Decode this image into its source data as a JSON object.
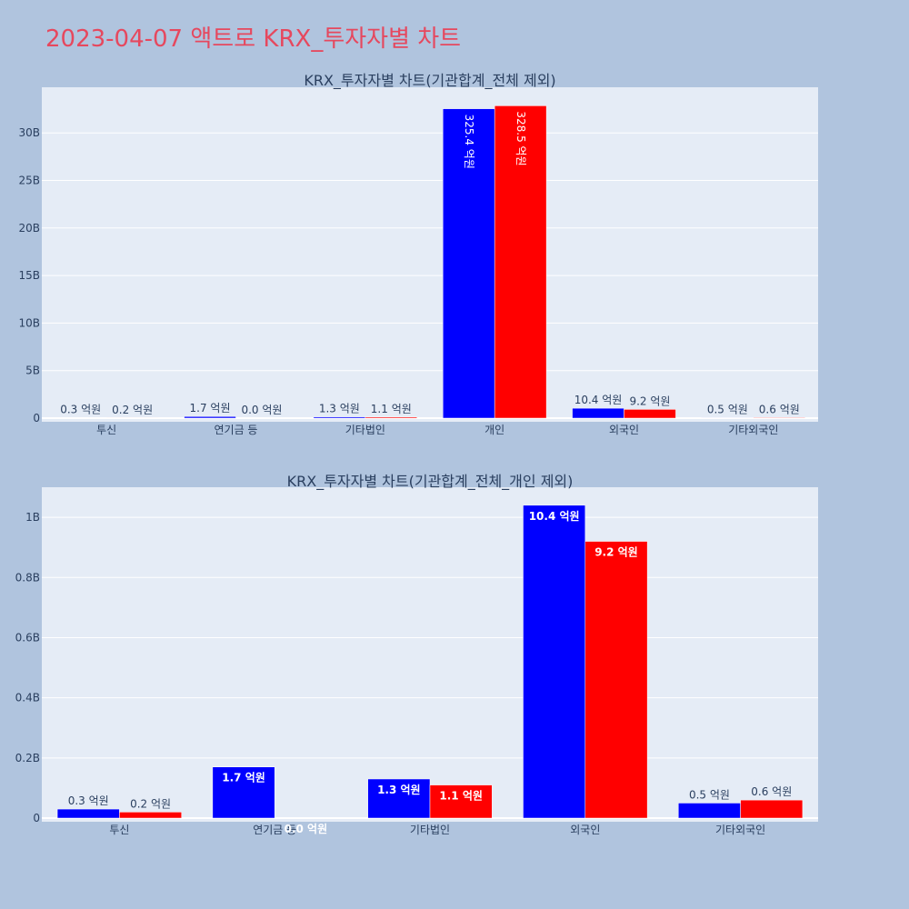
{
  "page": {
    "title": "2023-04-07 액트로 KRX_투자자별 차트"
  },
  "colors": {
    "background": "#b0c4de",
    "plot_bg": "#e5ecf6",
    "series_a": "#0000ff",
    "series_b": "#ff0000",
    "title": "#e6485e",
    "text": "#2a3f5f"
  },
  "chart_data": [
    {
      "type": "bar",
      "title": "KRX_투자자별 차트(기관합계_전체 제외)",
      "categories": [
        "투신",
        "연기금 등",
        "기타법인",
        "개인",
        "외국인",
        "기타외국인"
      ],
      "series": [
        {
          "values": [
            30000000,
            170000000,
            130000000,
            32540000000,
            1040000000,
            50000000
          ],
          "labels": [
            "0.3 억원",
            "1.7 억원",
            "1.3 억원",
            "325.4 억원",
            "10.4 억원",
            "0.5 억원"
          ]
        },
        {
          "values": [
            20000000,
            0,
            110000000,
            32850000000,
            920000000,
            60000000
          ],
          "labels": [
            "0.2 억원",
            "0.0 억원",
            "1.1 억원",
            "328.5 억원",
            "9.2 억원",
            "0.6 억원"
          ]
        }
      ],
      "yticks": [
        0,
        5000000000,
        10000000000,
        15000000000,
        20000000000,
        25000000000,
        30000000000
      ],
      "ytick_labels": [
        "0",
        "5B",
        "10B",
        "15B",
        "20B",
        "25B",
        "30B"
      ],
      "ylim": [
        0,
        34800000000
      ],
      "xlabel": "",
      "ylabel": "",
      "grid": true,
      "legend": "none"
    },
    {
      "type": "bar",
      "title": "KRX_투자자별 차트(기관합계_전체_개인 제외)",
      "categories": [
        "투신",
        "연기금 등",
        "기타법인",
        "외국인",
        "기타외국인"
      ],
      "series": [
        {
          "values": [
            30000000,
            170000000,
            130000000,
            1040000000,
            50000000
          ],
          "labels": [
            "0.3 억원",
            "1.7 억원",
            "1.3 억원",
            "10.4 억원",
            "0.5 억원"
          ]
        },
        {
          "values": [
            20000000,
            0,
            110000000,
            920000000,
            60000000
          ],
          "labels": [
            "0.2 억원",
            "0.0 억원",
            "1.1 억원",
            "9.2 억원",
            "0.6 억원"
          ]
        }
      ],
      "yticks": [
        0,
        200000000,
        400000000,
        600000000,
        800000000,
        1000000000
      ],
      "ytick_labels": [
        "0",
        "0.2B",
        "0.4B",
        "0.6B",
        "0.8B",
        "1B"
      ],
      "ylim": [
        0,
        1100000000
      ],
      "xlabel": "",
      "ylabel": "",
      "grid": true,
      "legend": "none"
    }
  ]
}
